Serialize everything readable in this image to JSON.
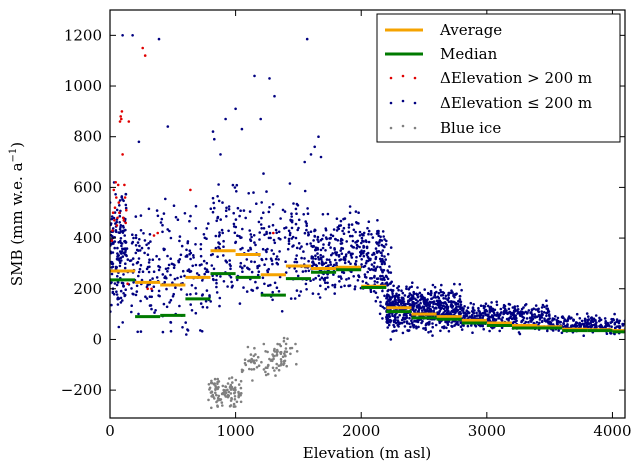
{
  "chart_data": {
    "type": "scatter",
    "xlabel": "Elevation  (m asl)",
    "ylabel": "SMB (mm w.e. a",
    "ylabel_sup": "−1",
    "ylabel_close": ")",
    "xlim": [
      0,
      4100
    ],
    "ylim": [
      -310,
      1300
    ],
    "x_ticks": [
      0,
      1000,
      2000,
      3000,
      4000
    ],
    "x_tick_labels": [
      "0",
      "1000",
      "2000",
      "3000",
      "4000"
    ],
    "y_ticks": [
      -200,
      0,
      200,
      400,
      600,
      800,
      1000,
      1200
    ],
    "y_tick_labels": [
      "−200",
      "0",
      "200",
      "400",
      "600",
      "800",
      "1000",
      "1200"
    ],
    "legend_position": "top-right",
    "legend": [
      {
        "label": "Average",
        "kind": "line",
        "color": "#f5a300"
      },
      {
        "label": "Median",
        "kind": "line",
        "color": "#007a00"
      },
      {
        "label": "ΔElevation > 200 m",
        "kind": "dots",
        "color": "#e00000"
      },
      {
        "label": "ΔElevation ≤ 200 m",
        "kind": "dots",
        "color": "#000080"
      },
      {
        "label": "Blue ice",
        "kind": "dots",
        "color": "#808080"
      }
    ],
    "series": [
      {
        "name": "Average",
        "kind": "step",
        "color": "#f5a300",
        "bins": [
          {
            "x0": 0,
            "x1": 200,
            "y": 270
          },
          {
            "x0": 200,
            "x1": 400,
            "y": 225
          },
          {
            "x0": 400,
            "x1": 600,
            "y": 215
          },
          {
            "x0": 600,
            "x1": 800,
            "y": 245
          },
          {
            "x0": 800,
            "x1": 1000,
            "y": 350
          },
          {
            "x0": 1000,
            "x1": 1200,
            "y": 335
          },
          {
            "x0": 1200,
            "x1": 1400,
            "y": 255
          },
          {
            "x0": 1400,
            "x1": 1600,
            "y": 290
          },
          {
            "x0": 1600,
            "x1": 1800,
            "y": 280
          },
          {
            "x0": 1800,
            "x1": 2000,
            "y": 285
          },
          {
            "x0": 2000,
            "x1": 2200,
            "y": 210
          },
          {
            "x0": 2200,
            "x1": 2400,
            "y": 125
          },
          {
            "x0": 2400,
            "x1": 2600,
            "y": 100
          },
          {
            "x0": 2600,
            "x1": 2800,
            "y": 90
          },
          {
            "x0": 2800,
            "x1": 3000,
            "y": 75
          },
          {
            "x0": 3000,
            "x1": 3200,
            "y": 65
          },
          {
            "x0": 3200,
            "x1": 3400,
            "y": 55
          },
          {
            "x0": 3400,
            "x1": 3600,
            "y": 50
          },
          {
            "x0": 3600,
            "x1": 3800,
            "y": 40
          },
          {
            "x0": 3800,
            "x1": 4000,
            "y": 38
          },
          {
            "x0": 4000,
            "x1": 4100,
            "y": 35
          }
        ]
      },
      {
        "name": "Median",
        "kind": "step",
        "color": "#007a00",
        "bins": [
          {
            "x0": 0,
            "x1": 200,
            "y": 235
          },
          {
            "x0": 200,
            "x1": 400,
            "y": 90
          },
          {
            "x0": 400,
            "x1": 600,
            "y": 95
          },
          {
            "x0": 600,
            "x1": 800,
            "y": 160
          },
          {
            "x0": 800,
            "x1": 1000,
            "y": 260
          },
          {
            "x0": 1000,
            "x1": 1200,
            "y": 245
          },
          {
            "x0": 1200,
            "x1": 1400,
            "y": 175
          },
          {
            "x0": 1400,
            "x1": 1600,
            "y": 240
          },
          {
            "x0": 1600,
            "x1": 1800,
            "y": 265
          },
          {
            "x0": 1800,
            "x1": 2000,
            "y": 275
          },
          {
            "x0": 2000,
            "x1": 2200,
            "y": 205
          },
          {
            "x0": 2200,
            "x1": 2400,
            "y": 110
          },
          {
            "x0": 2400,
            "x1": 2600,
            "y": 85
          },
          {
            "x0": 2600,
            "x1": 2800,
            "y": 80
          },
          {
            "x0": 2800,
            "x1": 3000,
            "y": 65
          },
          {
            "x0": 3000,
            "x1": 3200,
            "y": 55
          },
          {
            "x0": 3200,
            "x1": 3400,
            "y": 45
          },
          {
            "x0": 3400,
            "x1": 3600,
            "y": 45
          },
          {
            "x0": 3600,
            "x1": 3800,
            "y": 35
          },
          {
            "x0": 3800,
            "x1": 4000,
            "y": 35
          },
          {
            "x0": 4000,
            "x1": 4100,
            "y": 30
          }
        ]
      },
      {
        "name": "ΔElevation > 200 m",
        "kind": "scatter",
        "color": "#e00000",
        "points": [
          [
            15,
            390
          ],
          [
            20,
            430
          ],
          [
            25,
            500
          ],
          [
            30,
            590
          ],
          [
            35,
            470
          ],
          [
            40,
            520
          ],
          [
            45,
            620
          ],
          [
            50,
            560
          ],
          [
            55,
            450
          ],
          [
            60,
            480
          ],
          [
            65,
            610
          ],
          [
            70,
            540
          ],
          [
            75,
            500
          ],
          [
            80,
            860
          ],
          [
            85,
            880
          ],
          [
            90,
            870
          ],
          [
            95,
            900
          ],
          [
            100,
            730
          ],
          [
            105,
            480
          ],
          [
            110,
            470
          ],
          [
            115,
            610
          ],
          [
            120,
            560
          ],
          [
            125,
            460
          ],
          [
            130,
            510
          ],
          [
            140,
            220
          ],
          [
            150,
            860
          ],
          [
            260,
            1150
          ],
          [
            280,
            1120
          ],
          [
            300,
            200
          ],
          [
            330,
            200
          ],
          [
            350,
            410
          ],
          [
            380,
            420
          ],
          [
            640,
            590
          ],
          [
            1300,
            420
          ]
        ]
      },
      {
        "name": "ΔElevation ≤ 200 m",
        "kind": "scatter",
        "color": "#000080",
        "clusters": [
          {
            "x": [
              0,
              130
            ],
            "y": [
              0,
              700
            ],
            "n": 160
          },
          {
            "x": [
              130,
              800
            ],
            "y": [
              -60,
              600
            ],
            "n": 240
          },
          {
            "x": [
              800,
              1600
            ],
            "y": [
              0,
              700
            ],
            "n": 300
          },
          {
            "x": [
              1600,
              2200
            ],
            "y": [
              100,
              560
            ],
            "n": 380
          },
          {
            "x": [
              2150,
              2250
            ],
            "y": [
              -30,
              420
            ],
            "n": 60
          },
          {
            "x": [
              2200,
              2800
            ],
            "y": [
              0,
              240
            ],
            "n": 650
          },
          {
            "x": [
              2800,
              3500
            ],
            "y": [
              10,
              170
            ],
            "n": 380
          },
          {
            "x": [
              3500,
              4100
            ],
            "y": [
              5,
              110
            ],
            "n": 240
          }
        ],
        "outliers": [
          [
            100,
            1200
          ],
          [
            180,
            1200
          ],
          [
            390,
            1185
          ],
          [
            1150,
            1040
          ],
          [
            1270,
            1030
          ],
          [
            1310,
            960
          ],
          [
            1570,
            1185
          ],
          [
            1000,
            910
          ],
          [
            1200,
            870
          ],
          [
            1050,
            830
          ],
          [
            920,
            870
          ],
          [
            460,
            840
          ],
          [
            1630,
            760
          ],
          [
            1600,
            730
          ],
          [
            1660,
            800
          ],
          [
            820,
            820
          ],
          [
            830,
            790
          ],
          [
            880,
            730
          ],
          [
            1550,
            700
          ],
          [
            230,
            780
          ],
          [
            1680,
            720
          ]
        ]
      },
      {
        "name": "Blue ice",
        "kind": "scatter",
        "color": "#808080",
        "clusters": [
          {
            "x": [
              780,
              1050
            ],
            "y": [
              -290,
              -130
            ],
            "n": 110
          },
          {
            "x": [
              1050,
              1400
            ],
            "y": [
              -180,
              0
            ],
            "n": 70
          },
          {
            "x": [
              1300,
              1500
            ],
            "y": [
              -120,
              60
            ],
            "n": 25
          }
        ]
      }
    ]
  }
}
